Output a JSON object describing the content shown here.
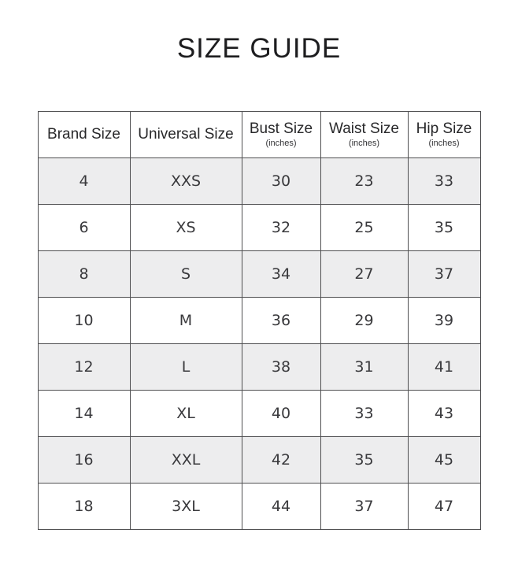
{
  "title": "SIZE GUIDE",
  "colors": {
    "background": "#ffffff",
    "row_alternate": "#ededee",
    "border": "#4f4f51",
    "text": "#39393c"
  },
  "table": {
    "headers": [
      {
        "label": "Brand Size",
        "sub": ""
      },
      {
        "label": "Universal Size",
        "sub": ""
      },
      {
        "label": "Bust Size",
        "sub": "(inches)"
      },
      {
        "label": "Waist Size",
        "sub": "(inches)"
      },
      {
        "label": "Hip Size",
        "sub": "(inches)"
      }
    ],
    "rows": [
      [
        "4",
        "XXS",
        "30",
        "23",
        "33"
      ],
      [
        "6",
        "XS",
        "32",
        "25",
        "35"
      ],
      [
        "8",
        "S",
        "34",
        "27",
        "37"
      ],
      [
        "10",
        "M",
        "36",
        "29",
        "39"
      ],
      [
        "12",
        "L",
        "38",
        "31",
        "41"
      ],
      [
        "14",
        "XL",
        "40",
        "33",
        "43"
      ],
      [
        "16",
        "XXL",
        "42",
        "35",
        "45"
      ],
      [
        "18",
        "3XL",
        "44",
        "37",
        "47"
      ]
    ]
  }
}
